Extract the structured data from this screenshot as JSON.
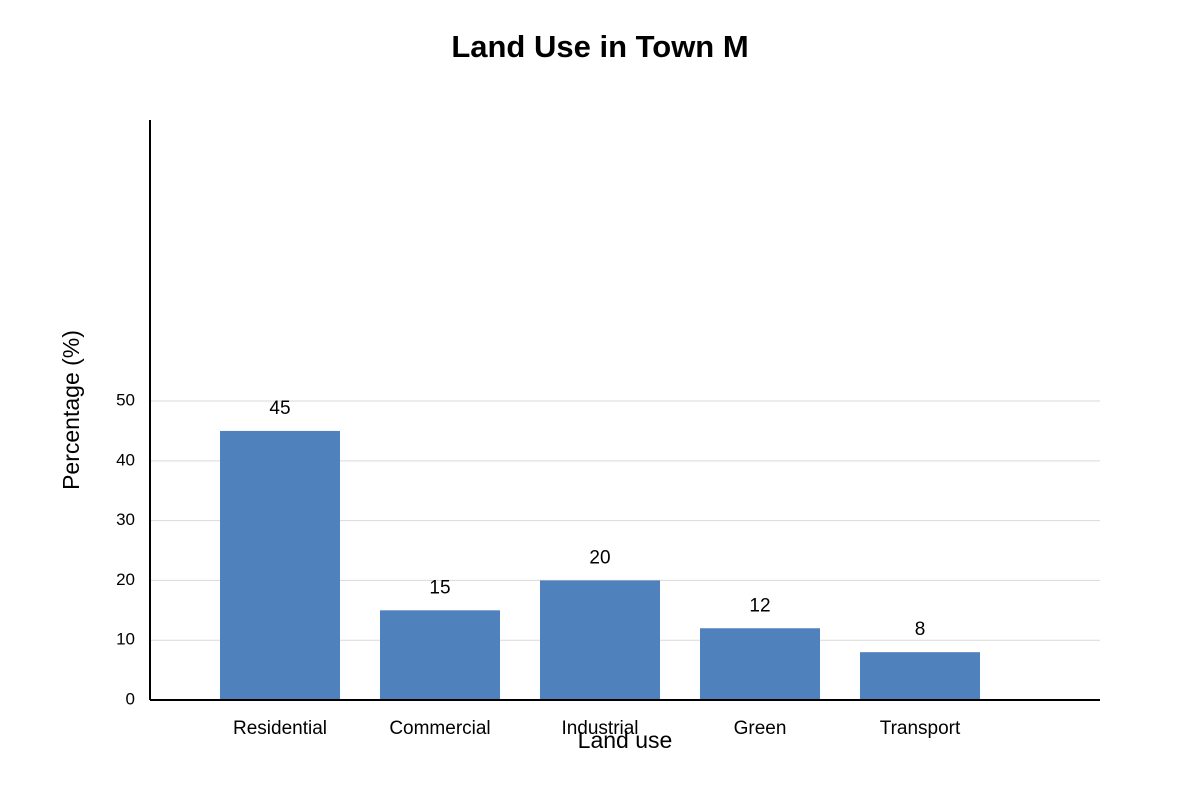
{
  "chart_data": {
    "type": "bar",
    "title": "Land Use in Town M",
    "x_label": "Land use",
    "y_label": "Percentage (%)",
    "categories": [
      "Residential",
      "Commercial",
      "Industrial",
      "Green",
      "Transport"
    ],
    "values": [
      45,
      15,
      20,
      12,
      8
    ],
    "color": "#4f81bd",
    "ylim": [
      0,
      97
    ],
    "yticks": [
      0,
      10,
      20,
      30,
      40,
      50
    ],
    "grid": true
  }
}
